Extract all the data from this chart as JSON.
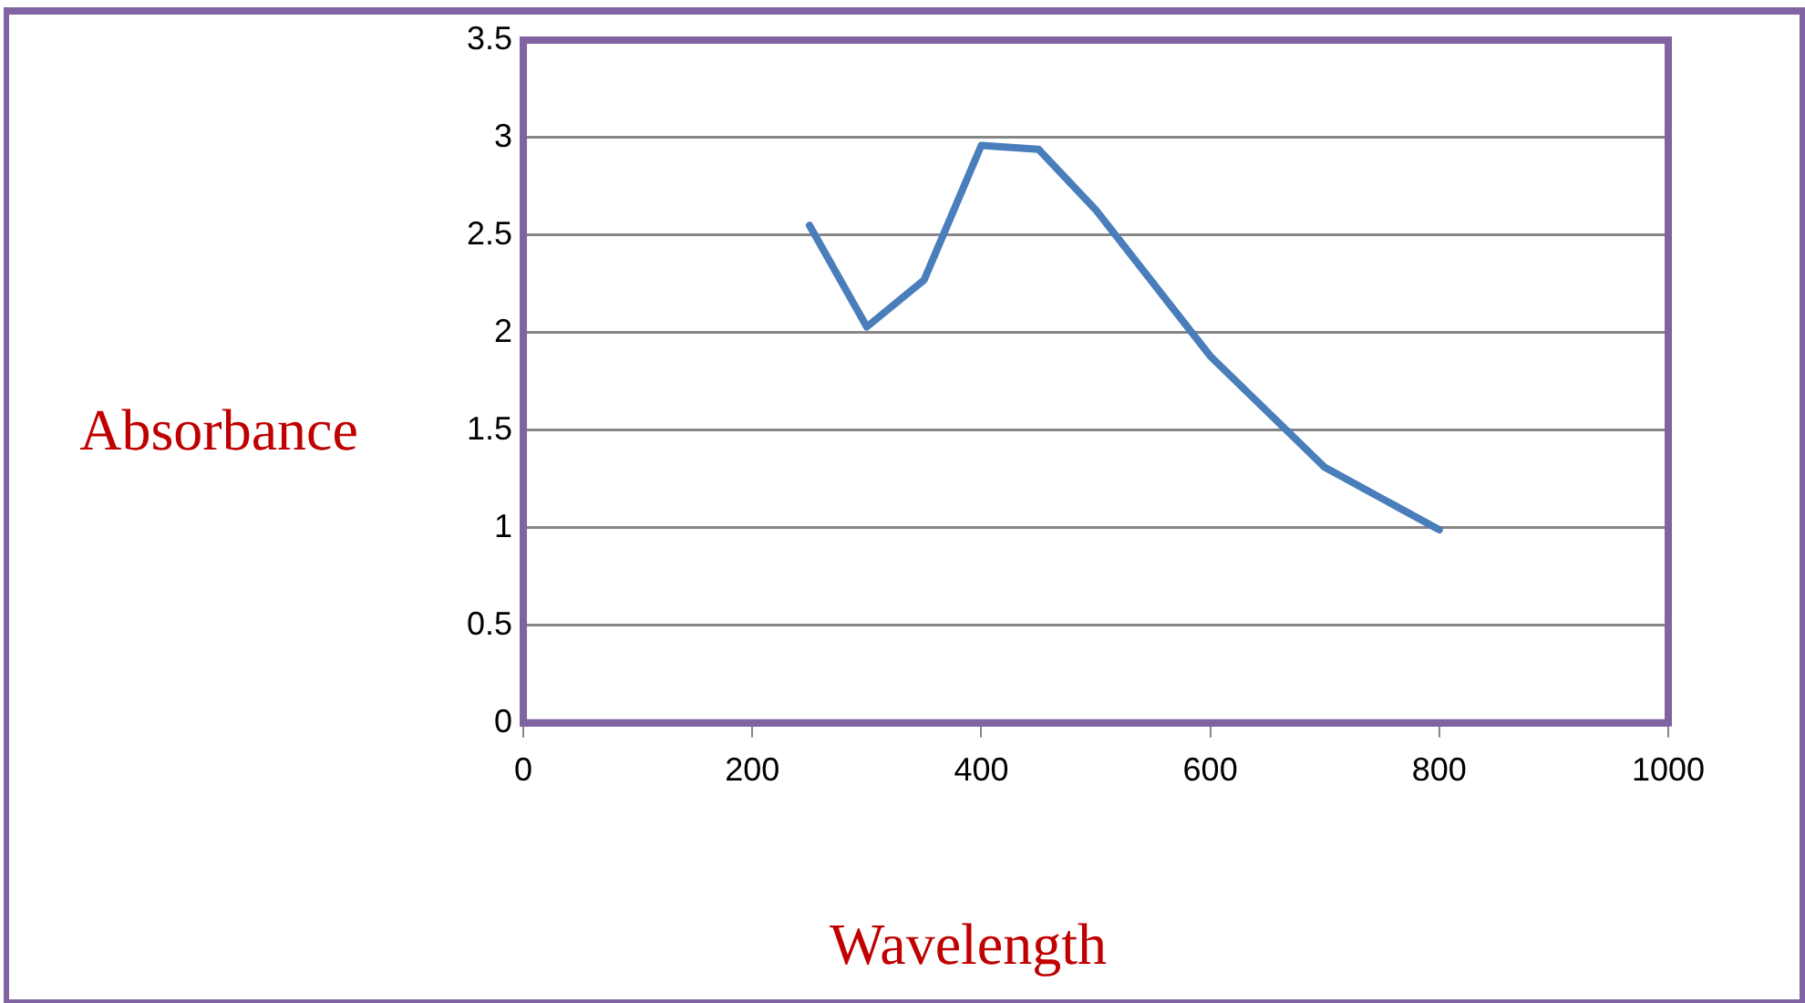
{
  "chart_data": {
    "type": "line",
    "xlabel": "Wavelength",
    "ylabel": "Absorbance",
    "x": [
      250,
      300,
      350,
      400,
      450,
      500,
      600,
      700,
      800
    ],
    "series": [
      {
        "color": "#4a7ebb",
        "values": [
          2.55,
          2.03,
          2.27,
          2.96,
          2.94,
          2.63,
          1.88,
          1.31,
          0.99
        ]
      }
    ],
    "xlim": [
      0,
      1000
    ],
    "xticks": [
      0,
      200,
      400,
      600,
      800,
      1000
    ],
    "ylim": [
      0,
      3.5
    ],
    "yticks": [
      0,
      0.5,
      1,
      1.5,
      2,
      2.5,
      3,
      3.5
    ],
    "grid": "y",
    "legend": false,
    "marker": "none",
    "line_style": "solid"
  }
}
